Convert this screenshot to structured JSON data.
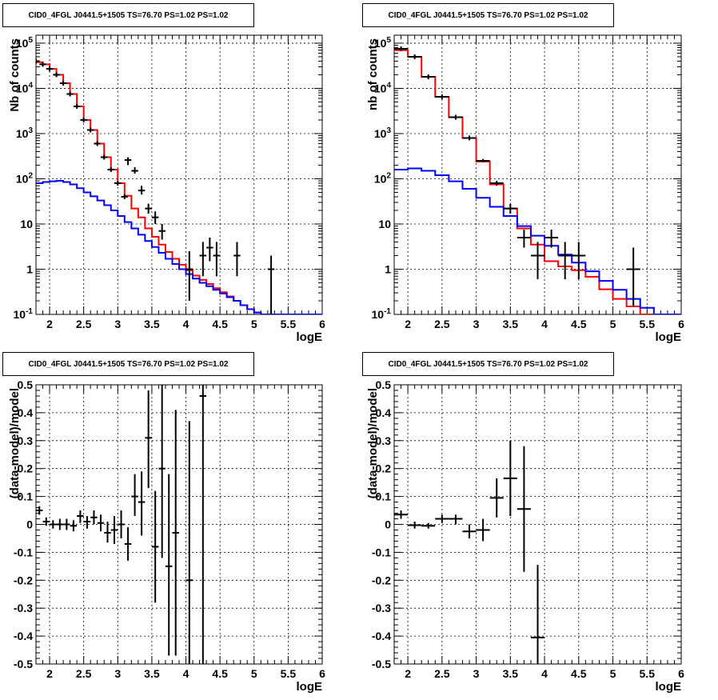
{
  "panels": [
    {
      "id": "tl",
      "title": "CID0_4FGL J0441.5+1505 TS=76.70 PS=1.02 PS=1.02",
      "xlabel": "logE",
      "ylabel": "Nb of counts"
    },
    {
      "id": "tr",
      "title": "CID0_4FGL J0441.5+1505 TS=76.70 PS=1.02 PS=1.02",
      "xlabel": "logE",
      "ylabel": "nb of counts"
    },
    {
      "id": "bl",
      "title": "CID0_4FGL J0441.5+1505 TS=76.70 PS=1.02 PS=1.02",
      "xlabel": "logE",
      "ylabel": "(data-model)/model"
    },
    {
      "id": "br",
      "title": "CID0_4FGL J0441.5+1505 TS=76.70 PS=1.02 PS=1.02",
      "xlabel": "logE",
      "ylabel": "(data-model)/model"
    }
  ],
  "colors": {
    "total_model": "#ff0000",
    "source_model": "#0000ff",
    "data": "#000000"
  },
  "chart_data": [
    {
      "type": "histogram_step",
      "panel": "tl",
      "title": "CID0_4FGL J0441.5+1505 TS=76.70 PS=1.02 PS=1.02",
      "xlabel": "logE",
      "ylabel": "Nb of counts",
      "xlim": [
        1.8,
        6.0
      ],
      "ylim": [
        0.1,
        150000
      ],
      "yscale": "log",
      "grid": true,
      "x_ticks": [
        "2",
        "2.5",
        "3",
        "3.5",
        "4",
        "4.5",
        "5",
        "5.5",
        "6"
      ],
      "y_ticks": [
        "10^{-1}",
        "1",
        "10",
        "10^{2}",
        "10^{3}",
        "10^{4}",
        "10^{5}"
      ],
      "bin_width": 0.1,
      "bin_low_edges": [
        1.8,
        1.9,
        2.0,
        2.1,
        2.2,
        2.3,
        2.4,
        2.5,
        2.6,
        2.7,
        2.8,
        2.9,
        3.0,
        3.1,
        3.2,
        3.3,
        3.4,
        3.5,
        3.6,
        3.7,
        3.8,
        3.9,
        4.0,
        4.1,
        4.2,
        4.3,
        4.4,
        4.5,
        4.6,
        4.7,
        4.8,
        4.9,
        5.0,
        5.1,
        5.2,
        5.3,
        5.4,
        5.5,
        5.6,
        5.7,
        5.8,
        5.9
      ],
      "series": [
        {
          "name": "total model",
          "color": "#ff0000",
          "values": [
            38000,
            34000,
            27000,
            20000,
            13000,
            7500,
            4000,
            2000,
            1200,
            600,
            300,
            160,
            80,
            42,
            22,
            14,
            8,
            5.2,
            3.5,
            2.4,
            1.7,
            1.25,
            0.95,
            0.72,
            0.58,
            0.47,
            0.38,
            0.31,
            0.25,
            0.2,
            0.16,
            0.13,
            0.11,
            0.1,
            0.1,
            0.1,
            0.1,
            0.1,
            0.1,
            0.1,
            0.1,
            0.1
          ]
        },
        {
          "name": "source model",
          "color": "#0000ff",
          "values": [
            80,
            85,
            88,
            90,
            85,
            75,
            62,
            50,
            41,
            33,
            26,
            20,
            15,
            11,
            8,
            5.8,
            4.2,
            3.1,
            2.3,
            1.7,
            1.3,
            1.0,
            0.78,
            0.62,
            0.5,
            0.42,
            0.35,
            0.29,
            0.24,
            0.2,
            0.16,
            0.13,
            0.11,
            0.1,
            0.1,
            0.1,
            0.1,
            0.1,
            0.1,
            0.1,
            0.1,
            0.1
          ]
        }
      ],
      "data_points": [
        {
          "x": 1.8,
          "xerr": 0.05,
          "y": 40000
        },
        {
          "x": 1.9,
          "xerr": 0.05,
          "y": 34000
        },
        {
          "x": 2.0,
          "xerr": 0.05,
          "y": 27000
        },
        {
          "x": 2.1,
          "xerr": 0.05,
          "y": 20000
        },
        {
          "x": 2.2,
          "xerr": 0.05,
          "y": 13000
        },
        {
          "x": 2.3,
          "xerr": 0.05,
          "y": 7500
        },
        {
          "x": 2.4,
          "xerr": 0.05,
          "y": 4000
        },
        {
          "x": 2.5,
          "xerr": 0.05,
          "y": 2000
        },
        {
          "x": 2.6,
          "xerr": 0.05,
          "y": 1200
        },
        {
          "x": 2.7,
          "xerr": 0.05,
          "y": 600
        },
        {
          "x": 2.8,
          "xerr": 0.05,
          "y": 300
        },
        {
          "x": 2.9,
          "xerr": 0.05,
          "y": 160
        },
        {
          "x": 3.0,
          "xerr": 0.05,
          "y": 80
        },
        {
          "x": 3.1,
          "xerr": 0.05,
          "y": 40
        },
        {
          "x": 3.15,
          "xerr": 0.05,
          "y": 260,
          "ylo": 200,
          "yhi": 300
        },
        {
          "x": 3.25,
          "xerr": 0.05,
          "y": 150,
          "ylo": 130,
          "yhi": 180
        },
        {
          "x": 3.35,
          "xerr": 0.05,
          "y": 55,
          "ylo": 45,
          "yhi": 70
        },
        {
          "x": 3.45,
          "xerr": 0.05,
          "y": 22,
          "ylo": 17,
          "yhi": 28
        },
        {
          "x": 3.55,
          "xerr": 0.05,
          "y": 14,
          "ylo": 10,
          "yhi": 19
        },
        {
          "x": 3.65,
          "xerr": 0.05,
          "y": 7,
          "ylo": 4.5,
          "yhi": 10
        },
        {
          "x": 4.05,
          "xerr": 0.05,
          "y": 1,
          "ylo": 0.2,
          "yhi": 2.5
        },
        {
          "x": 4.25,
          "xerr": 0.05,
          "y": 2,
          "ylo": 0.7,
          "yhi": 4
        },
        {
          "x": 4.35,
          "xerr": 0.05,
          "y": 3,
          "ylo": 1.5,
          "yhi": 5
        },
        {
          "x": 4.45,
          "xerr": 0.05,
          "y": 2,
          "ylo": 0.7,
          "yhi": 4
        },
        {
          "x": 4.75,
          "xerr": 0.05,
          "y": 2,
          "ylo": 0.7,
          "yhi": 4
        },
        {
          "x": 5.25,
          "xerr": 0.05,
          "y": 1,
          "ylo": 0.1,
          "yhi": 2
        }
      ]
    },
    {
      "type": "histogram_step",
      "panel": "tr",
      "title": "CID0_4FGL J0441.5+1505 TS=76.70 PS=1.02 PS=1.02",
      "xlabel": "logE",
      "ylabel": "nb of counts",
      "xlim": [
        1.8,
        6.0
      ],
      "ylim": [
        0.1,
        150000
      ],
      "yscale": "log",
      "grid": true,
      "x_ticks": [
        "2",
        "2.5",
        "3",
        "3.5",
        "4",
        "4.5",
        "5",
        "5.5",
        "6"
      ],
      "y_ticks": [
        "10^{-1}",
        "1",
        "10",
        "10^{2}",
        "10^{3}",
        "10^{4}",
        "10^{5}"
      ],
      "bin_width": 0.2,
      "bin_low_edges": [
        1.8,
        2.0,
        2.2,
        2.4,
        2.6,
        2.8,
        3.0,
        3.2,
        3.4,
        3.6,
        3.8,
        4.0,
        4.2,
        4.4,
        4.6,
        4.8,
        5.0,
        5.2,
        5.4,
        5.6,
        5.8
      ],
      "series": [
        {
          "name": "total model",
          "color": "#ff0000",
          "values": [
            70000,
            50000,
            18000,
            6500,
            2300,
            800,
            240,
            75,
            22,
            8,
            3.5,
            1.5,
            1.15,
            0.95,
            0.68,
            0.36,
            0.22,
            0.15,
            0.1,
            0.1,
            0.1
          ]
        },
        {
          "name": "source model",
          "color": "#0000ff",
          "values": [
            160,
            170,
            150,
            120,
            88,
            60,
            38,
            24,
            15,
            9,
            5.5,
            3.3,
            2.1,
            1.4,
            0.9,
            0.55,
            0.35,
            0.22,
            0.14,
            0.1,
            0.1
          ]
        }
      ],
      "data_points": [
        {
          "x": 1.9,
          "xerr": 0.1,
          "y": 75000
        },
        {
          "x": 2.1,
          "xerr": 0.1,
          "y": 50000
        },
        {
          "x": 2.3,
          "xerr": 0.1,
          "y": 18000
        },
        {
          "x": 2.5,
          "xerr": 0.1,
          "y": 6500
        },
        {
          "x": 2.7,
          "xerr": 0.1,
          "y": 2300
        },
        {
          "x": 2.9,
          "xerr": 0.1,
          "y": 800
        },
        {
          "x": 3.1,
          "xerr": 0.1,
          "y": 250,
          "ylo": 230,
          "yhi": 275
        },
        {
          "x": 3.3,
          "xerr": 0.1,
          "y": 80,
          "ylo": 70,
          "yhi": 90
        },
        {
          "x": 3.5,
          "xerr": 0.1,
          "y": 22,
          "ylo": 17,
          "yhi": 28
        },
        {
          "x": 3.7,
          "xerr": 0.1,
          "y": 5,
          "ylo": 3,
          "yhi": 7.5
        },
        {
          "x": 3.9,
          "xerr": 0.1,
          "y": 2,
          "ylo": 0.6,
          "yhi": 4
        },
        {
          "x": 4.1,
          "xerr": 0.1,
          "y": 5,
          "ylo": 3,
          "yhi": 7.5
        },
        {
          "x": 4.3,
          "xerr": 0.1,
          "y": 2,
          "ylo": 0.6,
          "yhi": 4
        },
        {
          "x": 4.5,
          "xerr": 0.1,
          "y": 2,
          "ylo": 0.6,
          "yhi": 4
        },
        {
          "x": 5.3,
          "xerr": 0.1,
          "y": 1,
          "ylo": 0.15,
          "yhi": 3
        }
      ]
    },
    {
      "type": "scatter_errorbar",
      "panel": "bl",
      "title": "CID0_4FGL J0441.5+1505 TS=76.70 PS=1.02 PS=1.02",
      "xlabel": "logE",
      "ylabel": "(data-model)/model",
      "xlim": [
        1.8,
        6.0
      ],
      "ylim": [
        -0.5,
        0.5
      ],
      "grid": true,
      "x_ticks": [
        "2",
        "2.5",
        "3",
        "3.5",
        "4",
        "4.5",
        "5",
        "5.5",
        "6"
      ],
      "y_ticks": [
        "-0.5",
        "-0.4",
        "-0.3",
        "-0.2",
        "-0.1",
        "0",
        "0.1",
        "0.2",
        "0.3",
        "0.4",
        "0.5"
      ],
      "points": [
        {
          "x": 1.85,
          "xerr": 0.05,
          "y": 0.05,
          "ylo": 0.035,
          "yhi": 0.065
        },
        {
          "x": 1.95,
          "xerr": 0.05,
          "y": 0.01,
          "ylo": -0.005,
          "yhi": 0.025
        },
        {
          "x": 2.05,
          "xerr": 0.05,
          "y": 0.0,
          "ylo": -0.015,
          "yhi": 0.015
        },
        {
          "x": 2.15,
          "xerr": 0.05,
          "y": 0.0,
          "ylo": -0.02,
          "yhi": 0.02
        },
        {
          "x": 2.25,
          "xerr": 0.05,
          "y": 0.0,
          "ylo": -0.02,
          "yhi": 0.02
        },
        {
          "x": 2.35,
          "xerr": 0.05,
          "y": -0.005,
          "ylo": -0.025,
          "yhi": 0.015
        },
        {
          "x": 2.45,
          "xerr": 0.05,
          "y": 0.03,
          "ylo": 0.005,
          "yhi": 0.05
        },
        {
          "x": 2.55,
          "xerr": 0.05,
          "y": 0.01,
          "ylo": -0.015,
          "yhi": 0.03
        },
        {
          "x": 2.65,
          "xerr": 0.05,
          "y": 0.025,
          "ylo": 0.0,
          "yhi": 0.05
        },
        {
          "x": 2.75,
          "xerr": 0.05,
          "y": 0.005,
          "ylo": -0.025,
          "yhi": 0.035
        },
        {
          "x": 2.85,
          "xerr": 0.05,
          "y": -0.03,
          "ylo": -0.065,
          "yhi": 0.01
        },
        {
          "x": 2.95,
          "xerr": 0.05,
          "y": -0.02,
          "ylo": -0.07,
          "yhi": 0.03
        },
        {
          "x": 3.05,
          "xerr": 0.05,
          "y": 0.0,
          "ylo": -0.05,
          "yhi": 0.05
        },
        {
          "x": 3.15,
          "xerr": 0.05,
          "y": -0.07,
          "ylo": -0.13,
          "yhi": -0.01
        },
        {
          "x": 3.25,
          "xerr": 0.05,
          "y": 0.1,
          "ylo": 0.03,
          "yhi": 0.18
        },
        {
          "x": 3.35,
          "xerr": 0.05,
          "y": 0.08,
          "ylo": -0.04,
          "yhi": 0.19
        },
        {
          "x": 3.45,
          "xerr": 0.05,
          "y": 0.31,
          "ylo": 0.13,
          "yhi": 0.48
        },
        {
          "x": 3.55,
          "xerr": 0.05,
          "y": -0.08,
          "ylo": -0.28,
          "yhi": 0.12
        },
        {
          "x": 3.65,
          "xerr": 0.05,
          "y": 0.2,
          "ylo": -0.12,
          "yhi": 0.5
        },
        {
          "x": 3.75,
          "xerr": 0.05,
          "y": -0.15,
          "ylo": -0.47,
          "yhi": 0.18
        },
        {
          "x": 3.85,
          "xerr": 0.05,
          "y": -0.03,
          "ylo": -0.47,
          "yhi": 0.41
        },
        {
          "x": 4.05,
          "xerr": 0.05,
          "y": -0.2,
          "ylo": -0.5,
          "yhi": 0.37
        },
        {
          "x": 4.25,
          "xerr": 0.05,
          "y": 0.46,
          "ylo": -0.5,
          "yhi": 0.5
        }
      ]
    },
    {
      "type": "scatter_errorbar",
      "panel": "br",
      "title": "CID0_4FGL J0441.5+1505 TS=76.70 PS=1.02 PS=1.02",
      "xlabel": "logE",
      "ylabel": "(data-model)/model",
      "xlim": [
        1.8,
        6.0
      ],
      "ylim": [
        -0.5,
        0.5
      ],
      "grid": true,
      "x_ticks": [
        "2",
        "2.5",
        "3",
        "3.5",
        "4",
        "4.5",
        "5",
        "5.5",
        "6"
      ],
      "y_ticks": [
        "-0.5",
        "-0.4",
        "-0.3",
        "-0.2",
        "-0.1",
        "0",
        "0.1",
        "0.2",
        "0.3",
        "0.4",
        "0.5"
      ],
      "points": [
        {
          "x": 1.9,
          "xerr": 0.1,
          "y": 0.035,
          "ylo": 0.02,
          "yhi": 0.05
        },
        {
          "x": 2.1,
          "xerr": 0.1,
          "y": -0.003,
          "ylo": -0.015,
          "yhi": 0.01
        },
        {
          "x": 2.3,
          "xerr": 0.1,
          "y": -0.005,
          "ylo": -0.015,
          "yhi": 0.005
        },
        {
          "x": 2.5,
          "xerr": 0.1,
          "y": 0.02,
          "ylo": 0.005,
          "yhi": 0.035
        },
        {
          "x": 2.7,
          "xerr": 0.1,
          "y": 0.02,
          "ylo": 0.0,
          "yhi": 0.035
        },
        {
          "x": 2.9,
          "xerr": 0.1,
          "y": -0.025,
          "ylo": -0.05,
          "yhi": 0.0
        },
        {
          "x": 3.1,
          "xerr": 0.1,
          "y": -0.02,
          "ylo": -0.06,
          "yhi": 0.02
        },
        {
          "x": 3.3,
          "xerr": 0.1,
          "y": 0.095,
          "ylo": 0.025,
          "yhi": 0.165
        },
        {
          "x": 3.5,
          "xerr": 0.1,
          "y": 0.165,
          "ylo": 0.03,
          "yhi": 0.3
        },
        {
          "x": 3.7,
          "xerr": 0.1,
          "y": 0.055,
          "ylo": -0.17,
          "yhi": 0.28
        },
        {
          "x": 3.9,
          "xerr": 0.1,
          "y": -0.405,
          "ylo": -0.5,
          "yhi": -0.145
        }
      ]
    }
  ]
}
